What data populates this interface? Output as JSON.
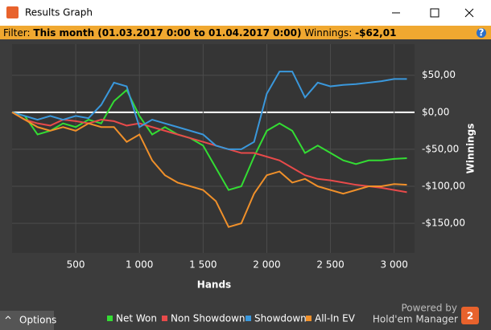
{
  "window": {
    "title": "Results Graph"
  },
  "filter": {
    "label": "Filter:",
    "value": "This month (01.03.2017 0:00 to 01.04.2017 0:00)",
    "winnings_label": "Winnings:",
    "winnings_value": "-$62,01",
    "help": "?"
  },
  "chart_data": {
    "type": "line",
    "x_label": "Hands",
    "y_label": "Winnings",
    "x": [
      0,
      100,
      200,
      300,
      400,
      500,
      600,
      700,
      800,
      900,
      1000,
      1100,
      1200,
      1300,
      1400,
      1500,
      1600,
      1700,
      1800,
      1900,
      2000,
      2100,
      2200,
      2300,
      2400,
      2500,
      2600,
      2700,
      2800,
      2900,
      3000,
      3100
    ],
    "series": [
      {
        "name": "Net Won",
        "color": "#33dd33",
        "values": [
          0,
          -5,
          -30,
          -25,
          -15,
          -20,
          -10,
          -15,
          15,
          30,
          -5,
          -30,
          -20,
          -30,
          -35,
          -45,
          -75,
          -105,
          -100,
          -60,
          -25,
          -15,
          -25,
          -55,
          -45,
          -55,
          -65,
          -70,
          -65,
          -65,
          -63,
          -62
        ]
      },
      {
        "name": "Non Showdown",
        "color": "#e84a4a",
        "values": [
          0,
          -10,
          -15,
          -18,
          -10,
          -12,
          -15,
          -10,
          -12,
          -18,
          -15,
          -20,
          -25,
          -30,
          -35,
          -40,
          -45,
          -50,
          -55,
          -55,
          -60,
          -65,
          -75,
          -85,
          -90,
          -92,
          -95,
          -98,
          -100,
          -102,
          -105,
          -108
        ]
      },
      {
        "name": "Showdown",
        "color": "#3a98dc",
        "values": [
          0,
          -5,
          -10,
          -5,
          -10,
          -5,
          -8,
          10,
          40,
          35,
          -20,
          -10,
          -15,
          -20,
          -25,
          -30,
          -45,
          -50,
          -50,
          -40,
          25,
          55,
          55,
          20,
          40,
          35,
          37,
          38,
          40,
          42,
          45,
          45
        ]
      },
      {
        "name": "All-In EV",
        "color": "#f0902a",
        "values": [
          0,
          -10,
          -20,
          -25,
          -20,
          -25,
          -15,
          -20,
          -20,
          -40,
          -30,
          -65,
          -85,
          -95,
          -100,
          -105,
          -120,
          -155,
          -150,
          -110,
          -85,
          -80,
          -95,
          -90,
          -100,
          -105,
          -110,
          -105,
          -100,
          -100,
          -97,
          -98
        ]
      }
    ],
    "xlim": [
      0,
      3160
    ],
    "ylim": [
      -190,
      92
    ],
    "xticks": [
      500,
      {
        "value": 1000,
        "label": "1 000"
      },
      {
        "value": 1500,
        "label": "1 500"
      },
      {
        "value": 2000,
        "label": "2 000"
      },
      {
        "value": 2500,
        "label": "2 500"
      },
      {
        "value": 3000,
        "label": "3 000"
      }
    ],
    "yticks": [
      {
        "value": 50,
        "label": "$50,00"
      },
      {
        "value": 0,
        "label": "$0,00"
      },
      {
        "value": -50,
        "label": "-$50,00"
      },
      {
        "value": -100,
        "label": "-$100,00"
      },
      {
        "value": -150,
        "label": "-$150,00"
      }
    ],
    "grid": true,
    "legend": "bottom"
  },
  "footer": {
    "options": "Options",
    "powered_by": "Powered by",
    "brand": "Hold'em Manager",
    "brand_number": "2"
  }
}
